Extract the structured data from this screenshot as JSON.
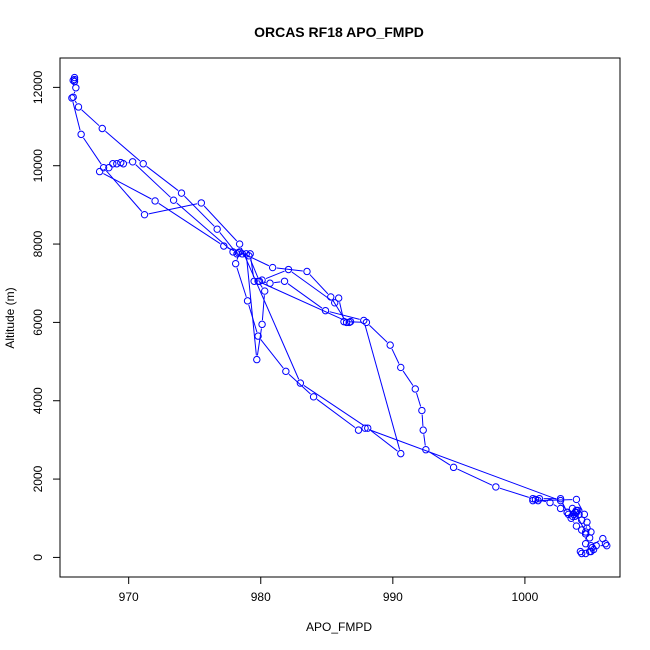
{
  "chart_data": {
    "type": "line",
    "title": "ORCAS RF18 APO_FMPD",
    "xlabel": "APO_FMPD",
    "ylabel": "Altitude (m)",
    "xlim": [
      964.8,
      1007.2
    ],
    "ylim": [
      -500,
      12750
    ],
    "xticks": [
      970,
      980,
      990,
      1000
    ],
    "yticks": [
      0,
      2000,
      4000,
      6000,
      8000,
      10000,
      12000
    ],
    "grid": false,
    "legend": "none",
    "series_color": "#0000ff",
    "series": [
      {
        "x": [
          965.9,
          965.9,
          965.8,
          965.9,
          966.0,
          965.8,
          966.2,
          968.0,
          971.1,
          974.0,
          976.7,
          978.2,
          979.2,
          979.5,
          980.1,
          982.1,
          985.6,
          985.9,
          986.3,
          988.0,
          989.8,
          990.6,
          991.7,
          992.2,
          992.3,
          992.5,
          994.6,
          997.8,
          1000.6,
          1001.9,
          1002.7,
          1003.2,
          1003.6,
          1004.3,
          1004.7,
          1005.0,
          1004.6,
          1004.9,
          1005.0,
          1005.9,
          1006.1,
          1006.2,
          1005.4,
          1005.2,
          1005.0,
          1004.6,
          1004.2,
          1004.3,
          1004.9,
          1005.1,
          1004.6,
          1004.6,
          1004.3,
          1003.9,
          1003.5,
          1003.7,
          1003.9,
          1004.0,
          1003.6,
          1003.2,
          1002.7,
          1001.1,
          1000.6,
          1000.8,
          1001.0,
          1003.9,
          1004.5,
          1004.7,
          1004.6,
          1003.8,
          1003.9,
          1004.1,
          1003.8,
          1003.3,
          1002.7,
          987.9,
          987.4,
          984.0,
          981.9,
          979.8,
          979.0,
          978.1,
          978.4,
          980.9,
          983.5,
          985.3,
          986.5,
          986.8,
          986.7,
          979.8,
          980.3,
          980.1,
          979.7,
          978.9,
          978.3,
          977.2,
          972.0,
          967.8,
          968.5,
          968.8,
          969.1,
          969.4,
          969.6,
          970.3,
          973.4,
          977.9,
          978.6,
          979.1,
          979.9,
          980.7,
          981.8,
          984.9,
          987.8,
          990.6,
          988.1,
          983.0,
          978.4,
          975.5,
          971.2,
          968.1,
          966.4,
          965.7
        ],
        "y": [
          12250,
          12200,
          12180,
          12150,
          11990,
          11750,
          11500,
          10950,
          10050,
          9300,
          8380,
          7750,
          7750,
          7050,
          7080,
          7350,
          6500,
          6620,
          6020,
          6000,
          5420,
          4850,
          4300,
          3750,
          3250,
          2750,
          2300,
          1800,
          1500,
          1400,
          1250,
          1150,
          1050,
          950,
          750,
          650,
          600,
          500,
          300,
          480,
          350,
          300,
          300,
          200,
          150,
          100,
          150,
          100,
          150,
          250,
          350,
          600,
          700,
          800,
          1000,
          1100,
          1150,
          1200,
          1250,
          1150,
          1500,
          1500,
          1450,
          1480,
          1450,
          1480,
          1100,
          900,
          650,
          1150,
          1200,
          1100,
          1050,
          1100,
          1450,
          3300,
          3250,
          4100,
          4750,
          5650,
          6550,
          7500,
          7800,
          7400,
          7300,
          6650,
          6000,
          6020,
          6000,
          7050,
          6800,
          5950,
          5050,
          7750,
          7780,
          7950,
          9100,
          9850,
          9950,
          10050,
          10050,
          10080,
          10050,
          10100,
          9120,
          7800,
          7750,
          7700,
          7050,
          7000,
          7050,
          6300,
          6050,
          2650,
          3300,
          4450,
          8000,
          9050,
          8750,
          9950,
          10800,
          11730
        ]
      }
    ]
  }
}
